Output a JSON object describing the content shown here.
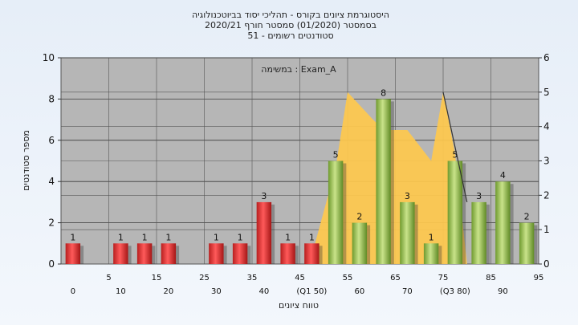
{
  "chart_data": {
    "type": "bar",
    "title_lines": [
      "היסטוגרמת ציונים בקורס - תהליכי יסוד בביוטכנולוגיה",
      "בסמסטר  (01/2020)  סמסטר חורף 2020/21",
      "סטודנטים רשומים - 51"
    ],
    "annotation": "במשימה : Exam_A",
    "xlabel": "טווח ציונים",
    "ylabel": "מספר סטודנטים",
    "ylim": [
      0,
      10
    ],
    "yticks": [
      0,
      2,
      4,
      6,
      8,
      10
    ],
    "y2lim": [
      0,
      6
    ],
    "y2ticks": [
      0,
      1,
      2,
      3,
      4,
      5,
      6
    ],
    "grid": true,
    "categories": [
      "0",
      "5",
      "10",
      "15",
      "20",
      "25",
      "30",
      "35",
      "40",
      "45",
      "50",
      "55",
      "60",
      "65",
      "70",
      "75",
      "80",
      "85",
      "90",
      "95"
    ],
    "x_tick_labels_row1": [
      "5",
      "15",
      "25",
      "35",
      "45",
      "55",
      "65",
      "75",
      "85",
      "95"
    ],
    "x_tick_labels_row2": [
      "0",
      "10",
      "20",
      "30",
      "40",
      "(Q1 50)",
      "60",
      "70",
      "(Q3 80)",
      "90"
    ],
    "values": [
      1,
      0,
      1,
      1,
      1,
      0,
      1,
      1,
      3,
      1,
      1,
      5,
      2,
      8,
      3,
      1,
      5,
      3,
      4,
      2
    ],
    "data_labels": [
      "1",
      "",
      "1",
      "1",
      "1",
      "",
      "1",
      "1",
      "3",
      "1",
      "1",
      "5",
      "2",
      "8",
      "3",
      "1",
      "5",
      "3",
      "4",
      "2"
    ],
    "bar_colors": {
      "below_threshold": "#e63a3a",
      "above_threshold": "#9cc356"
    },
    "threshold_category": "55",
    "area_series": [
      {
        "x": "50",
        "y": 0.25
      },
      {
        "x": "55",
        "y": 2.8
      },
      {
        "x": "57.5",
        "y": 5.0
      },
      {
        "x": "62.5",
        "y": 4.25
      },
      {
        "x": "65",
        "y": 3.9
      },
      {
        "x": "70",
        "y": 3.9
      },
      {
        "x": "75",
        "y": 3.0
      },
      {
        "x": "77.5",
        "y": 5.0
      },
      {
        "x": "80",
        "y": 3.2
      },
      {
        "x": "82.5",
        "y": 0.0
      }
    ],
    "area_color": "#ffc94d",
    "line_series": [
      {
        "x": "77.5",
        "y": 5.0
      },
      {
        "x": "82.5",
        "y": 1.8
      }
    ]
  }
}
